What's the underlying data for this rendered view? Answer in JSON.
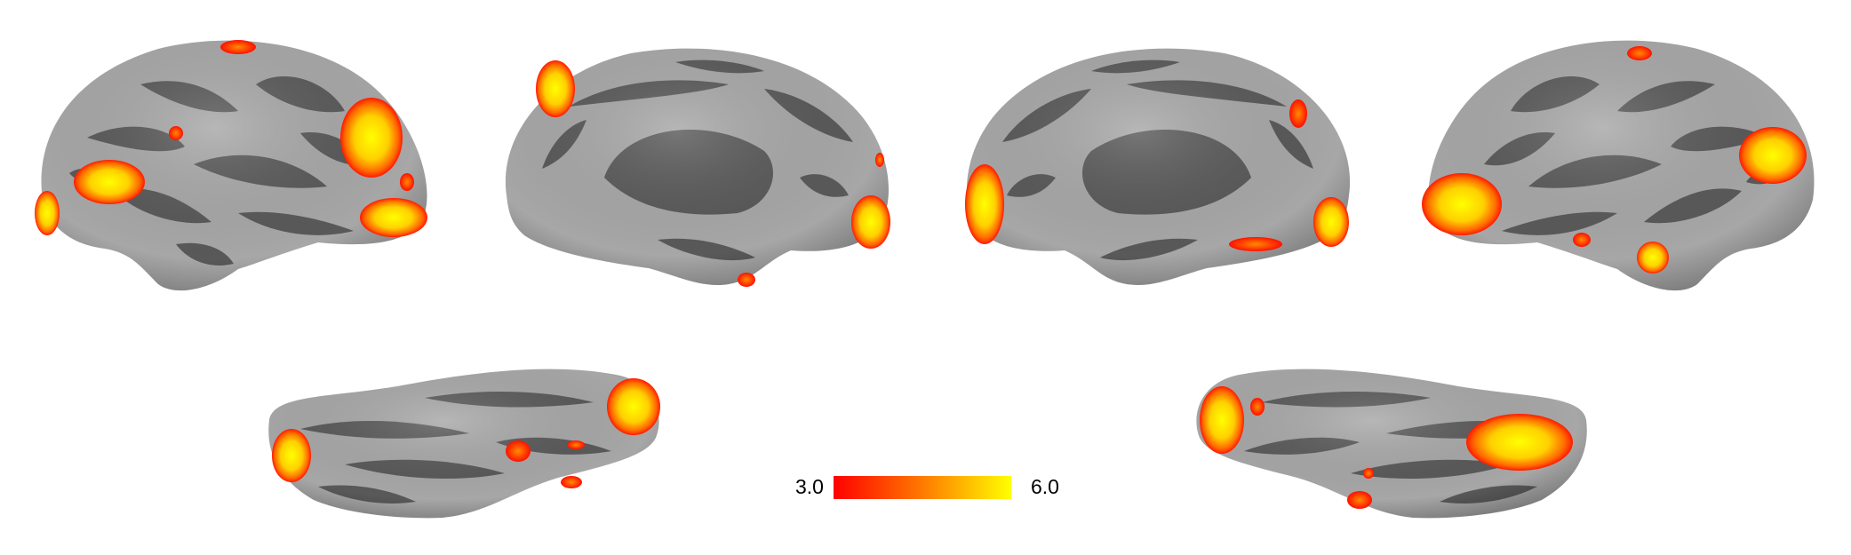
{
  "figure": {
    "background": "#ffffff",
    "surface": {
      "gyri_color": "#a7a7a7",
      "sulci_color": "#595959"
    },
    "activation_colormap": [
      "#ff0000",
      "#ff7a00",
      "#ffff00"
    ],
    "views": [
      {
        "name": "left-lateral",
        "activation": "present"
      },
      {
        "name": "left-medial",
        "activation": "present"
      },
      {
        "name": "right-medial",
        "activation": "present"
      },
      {
        "name": "right-lateral",
        "activation": "present"
      },
      {
        "name": "left-ventral",
        "activation": "present"
      },
      {
        "name": "right-ventral",
        "activation": "present"
      }
    ]
  },
  "colorbar": {
    "min_label": "3.0",
    "max_label": "6.0",
    "colors": [
      "#ff0000",
      "#ff7a00",
      "#ffff00"
    ]
  }
}
